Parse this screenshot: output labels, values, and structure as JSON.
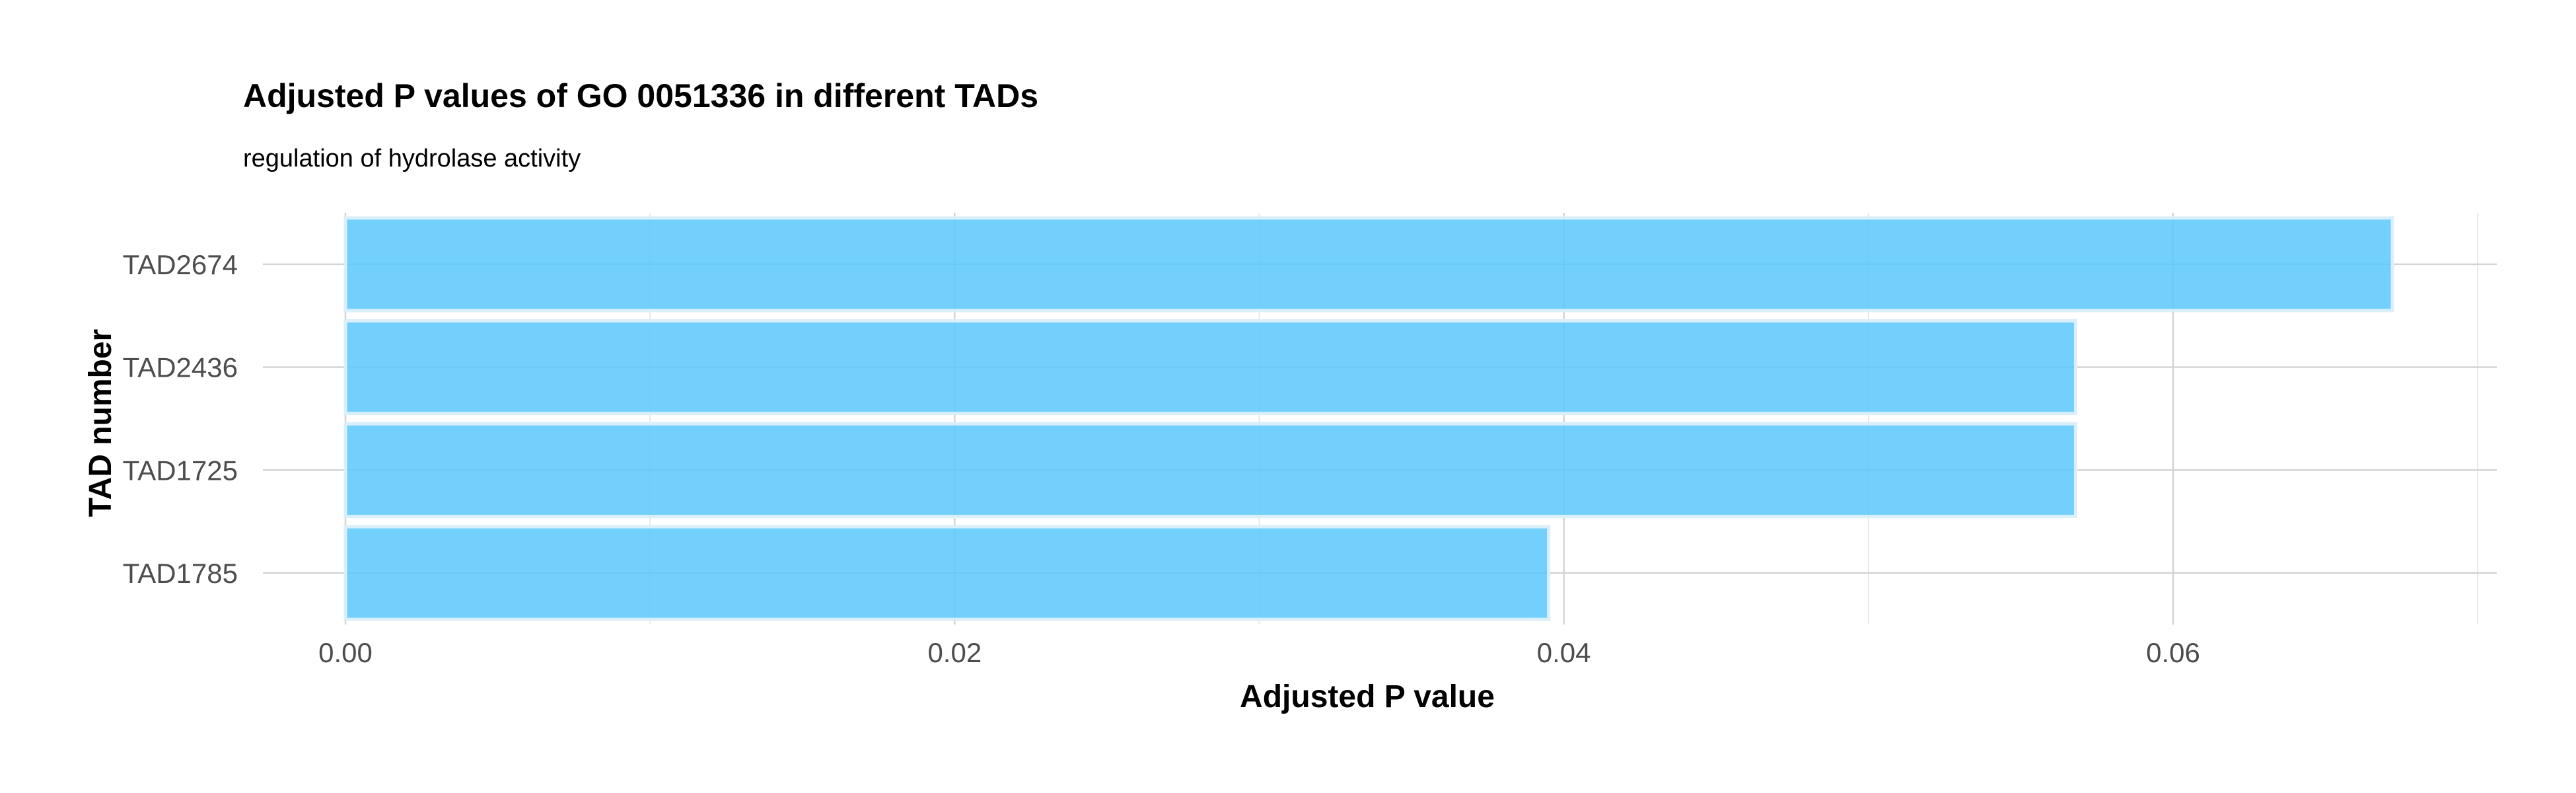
{
  "chart_data": {
    "type": "bar",
    "orientation": "horizontal",
    "title": "Adjusted P values of GO 0051336 in different TADs",
    "subtitle": "regulation of hydrolase activity",
    "xlabel": "Adjusted P value",
    "ylabel": "TAD number",
    "categories": [
      "TAD2674",
      "TAD2436",
      "TAD1725",
      "TAD1785"
    ],
    "values": [
      0.0672,
      0.0568,
      0.0568,
      0.0395
    ],
    "xlim": [
      0,
      0.0705
    ],
    "x_ticks": [
      0.0,
      0.02,
      0.04,
      0.06
    ],
    "x_tick_labels": [
      "0.00",
      "0.02",
      "0.04",
      "0.06"
    ],
    "grid": true,
    "legend": "none",
    "colors": {
      "bar_fill": "#5bc8fb",
      "bar_stroke": "#dbeffa",
      "grid_major": "#d4d4d4",
      "grid_minor": "#e8e8e8"
    }
  }
}
